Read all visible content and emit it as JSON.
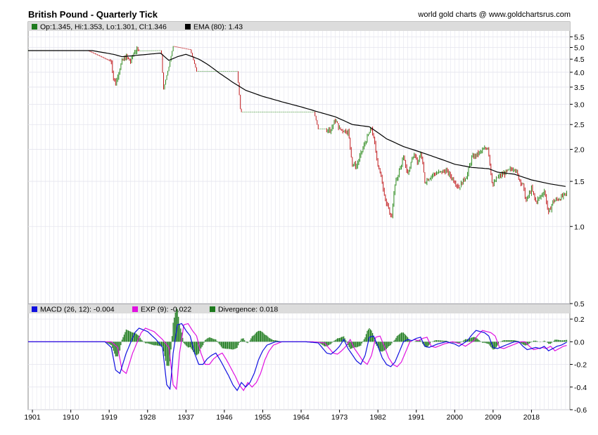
{
  "header": {
    "title": "British Pound - Quarterly Tick",
    "credit": "world gold charts @ www.goldchartsrus.com"
  },
  "colors": {
    "up": "#2e8b20",
    "down": "#c0191c",
    "ema": "#000000",
    "macd": "#1010e0",
    "exp": "#e010e0",
    "divergence": "#1d7a1d",
    "legend_bg": "#dcdcdc",
    "grid": "#e4e4ee"
  },
  "chart_data": [
    {
      "type": "ohlc",
      "title": "British Pound - Quarterly Tick",
      "legend": [
        {
          "name": "ohlc",
          "label": "Op:1.345, Hi:1.353, Lo:1.301, Cl:1.346",
          "color": "#1d7a1d"
        },
        {
          "name": "ema",
          "label": "EMA (80): 1.43",
          "color": "#000000"
        }
      ],
      "last_bar": {
        "open": 1.345,
        "high": 1.353,
        "low": 1.301,
        "close": 1.346
      },
      "ema_last": 1.43,
      "y_scale": "log",
      "ylim": [
        0.5,
        5.8
      ],
      "y_ticks": [
        "5.5",
        "5.0",
        "4.5",
        "4.0",
        "3.5",
        "3.0",
        "2.5",
        "2.0",
        "1.5",
        "1.0",
        "0.5"
      ],
      "x_ticks": [
        "1901",
        "1910",
        "1919",
        "1928",
        "1937",
        "1946",
        "1955",
        "1964",
        "1973",
        "1982",
        "1991",
        "2000",
        "2009",
        "2018"
      ],
      "xlim": [
        1900,
        2027
      ],
      "price_anchors": [
        [
          1900,
          4.86
        ],
        [
          1914,
          4.86
        ],
        [
          1919.5,
          4.4
        ],
        [
          1920,
          3.8
        ],
        [
          1920.5,
          3.6
        ],
        [
          1921,
          3.9
        ],
        [
          1922,
          4.4
        ],
        [
          1923,
          4.6
        ],
        [
          1924,
          4.4
        ],
        [
          1925,
          4.85
        ],
        [
          1931.2,
          4.86
        ],
        [
          1931.7,
          3.4
        ],
        [
          1933,
          4.2
        ],
        [
          1934,
          5.05
        ],
        [
          1938,
          4.9
        ],
        [
          1939.5,
          4.03
        ],
        [
          1949,
          4.03
        ],
        [
          1949.8,
          2.8
        ],
        [
          1967,
          2.8
        ],
        [
          1968,
          2.4
        ],
        [
          1971,
          2.4
        ],
        [
          1972,
          2.6
        ],
        [
          1973,
          2.4
        ],
        [
          1975,
          2.35
        ],
        [
          1976,
          1.75
        ],
        [
          1977,
          1.72
        ],
        [
          1980.5,
          2.42
        ],
        [
          1982,
          1.75
        ],
        [
          1984,
          1.22
        ],
        [
          1985.2,
          1.08
        ],
        [
          1986,
          1.45
        ],
        [
          1988,
          1.85
        ],
        [
          1989,
          1.6
        ],
        [
          1990.5,
          1.95
        ],
        [
          1991.5,
          1.75
        ],
        [
          1992,
          1.95
        ],
        [
          1993,
          1.5
        ],
        [
          1995,
          1.6
        ],
        [
          1998,
          1.65
        ],
        [
          2000,
          1.5
        ],
        [
          2001,
          1.42
        ],
        [
          2003,
          1.6
        ],
        [
          2004,
          1.85
        ],
        [
          2007,
          2.0
        ],
        [
          2007.8,
          2.05
        ],
        [
          2008.6,
          1.55
        ],
        [
          2009,
          1.45
        ],
        [
          2010,
          1.55
        ],
        [
          2014,
          1.7
        ],
        [
          2015,
          1.55
        ],
        [
          2016,
          1.45
        ],
        [
          2016.7,
          1.25
        ],
        [
          2018,
          1.4
        ],
        [
          2019,
          1.25
        ],
        [
          2020,
          1.3
        ],
        [
          2021,
          1.38
        ],
        [
          2022,
          1.12
        ],
        [
          2023,
          1.25
        ],
        [
          2025,
          1.3
        ],
        [
          2026.3,
          1.346
        ]
      ],
      "ema_anchors": [
        [
          1900,
          4.86
        ],
        [
          1915,
          4.86
        ],
        [
          1920,
          4.7
        ],
        [
          1922,
          4.6
        ],
        [
          1931,
          4.75
        ],
        [
          1933,
          4.45
        ],
        [
          1935,
          4.6
        ],
        [
          1937,
          4.7
        ],
        [
          1940,
          4.5
        ],
        [
          1942,
          4.3
        ],
        [
          1945,
          3.95
        ],
        [
          1948,
          3.65
        ],
        [
          1951,
          3.4
        ],
        [
          1955,
          3.22
        ],
        [
          1960,
          3.05
        ],
        [
          1964,
          2.93
        ],
        [
          1968,
          2.8
        ],
        [
          1972,
          2.68
        ],
        [
          1976,
          2.5
        ],
        [
          1980,
          2.45
        ],
        [
          1984,
          2.2
        ],
        [
          1988,
          2.05
        ],
        [
          1992,
          1.95
        ],
        [
          1996,
          1.85
        ],
        [
          2000,
          1.75
        ],
        [
          2004,
          1.7
        ],
        [
          2008,
          1.68
        ],
        [
          2010,
          1.63
        ],
        [
          2014,
          1.6
        ],
        [
          2018,
          1.52
        ],
        [
          2022,
          1.47
        ],
        [
          2026.3,
          1.43
        ]
      ]
    },
    {
      "type": "macd",
      "legend": [
        {
          "name": "macd",
          "label": "MACD (26, 12): -0.004",
          "color": "#1010e0"
        },
        {
          "name": "exp",
          "label": "EXP (9): -0.022",
          "color": "#e010e0"
        },
        {
          "name": "divergence",
          "label": "Divergence: 0.018",
          "color": "#1d7a1d"
        }
      ],
      "macd_last": -0.004,
      "exp_last": -0.022,
      "divergence_last": 0.018,
      "ylim": [
        -0.6,
        0.25
      ],
      "y_ticks": [
        "0.2",
        "0.0",
        "-0.2",
        "-0.4",
        "-0.6"
      ],
      "macd_anchors": [
        [
          1900,
          0.0
        ],
        [
          1918,
          0.0
        ],
        [
          1919.5,
          -0.05
        ],
        [
          1920.5,
          -0.25
        ],
        [
          1921.5,
          -0.28
        ],
        [
          1923,
          -0.1
        ],
        [
          1925,
          0.08
        ],
        [
          1926,
          0.12
        ],
        [
          1928,
          0.09
        ],
        [
          1930,
          0.02
        ],
        [
          1931.5,
          -0.05
        ],
        [
          1932.5,
          -0.38
        ],
        [
          1933.3,
          -0.42
        ],
        [
          1934,
          -0.1
        ],
        [
          1935,
          0.15
        ],
        [
          1936,
          0.16
        ],
        [
          1937,
          0.1
        ],
        [
          1938,
          0.05
        ],
        [
          1939,
          -0.1
        ],
        [
          1940,
          -0.2
        ],
        [
          1941,
          -0.2
        ],
        [
          1942,
          -0.15
        ],
        [
          1943,
          -0.12
        ],
        [
          1944,
          -0.1
        ],
        [
          1945,
          -0.16
        ],
        [
          1947,
          -0.3
        ],
        [
          1948,
          -0.38
        ],
        [
          1949,
          -0.43
        ],
        [
          1950,
          -0.36
        ],
        [
          1951,
          -0.4
        ],
        [
          1952,
          -0.36
        ],
        [
          1953,
          -0.28
        ],
        [
          1954,
          -0.16
        ],
        [
          1955,
          -0.08
        ],
        [
          1956,
          -0.03
        ],
        [
          1958,
          0.0
        ],
        [
          1965,
          0.0
        ],
        [
          1968,
          -0.01
        ],
        [
          1970,
          -0.1
        ],
        [
          1971,
          -0.11
        ],
        [
          1972,
          -0.08
        ],
        [
          1973,
          -0.04
        ],
        [
          1974,
          0.02
        ],
        [
          1975,
          -0.06
        ],
        [
          1977,
          -0.17
        ],
        [
          1978,
          -0.2
        ],
        [
          1979,
          -0.12
        ],
        [
          1980,
          0.04
        ],
        [
          1981,
          0.05
        ],
        [
          1982,
          -0.04
        ],
        [
          1983,
          -0.14
        ],
        [
          1984,
          -0.2
        ],
        [
          1985,
          -0.22
        ],
        [
          1986,
          -0.18
        ],
        [
          1987,
          -0.09
        ],
        [
          1988,
          0.0
        ],
        [
          1989,
          0.02
        ],
        [
          1990,
          0.01
        ],
        [
          1991,
          0.03
        ],
        [
          1992,
          0.04
        ],
        [
          1993,
          -0.04
        ],
        [
          1994,
          -0.05
        ],
        [
          1996,
          -0.02
        ],
        [
          1998,
          0.0
        ],
        [
          2000,
          -0.02
        ],
        [
          2001,
          -0.04
        ],
        [
          2003,
          0.01
        ],
        [
          2004,
          0.06
        ],
        [
          2005,
          0.1
        ],
        [
          2006,
          0.09
        ],
        [
          2007,
          0.08
        ],
        [
          2008,
          0.05
        ],
        [
          2009,
          -0.05
        ],
        [
          2010,
          -0.06
        ],
        [
          2012,
          -0.03
        ],
        [
          2014,
          0.0
        ],
        [
          2015,
          0.0
        ],
        [
          2016,
          -0.04
        ],
        [
          2017,
          -0.07
        ],
        [
          2018,
          -0.06
        ],
        [
          2019,
          -0.05
        ],
        [
          2020,
          -0.06
        ],
        [
          2021,
          -0.04
        ],
        [
          2022,
          -0.08
        ],
        [
          2023,
          -0.06
        ],
        [
          2024,
          -0.04
        ],
        [
          2025,
          -0.03
        ],
        [
          2026.3,
          -0.004
        ]
      ],
      "exp_lag_years": 1.5
    }
  ]
}
